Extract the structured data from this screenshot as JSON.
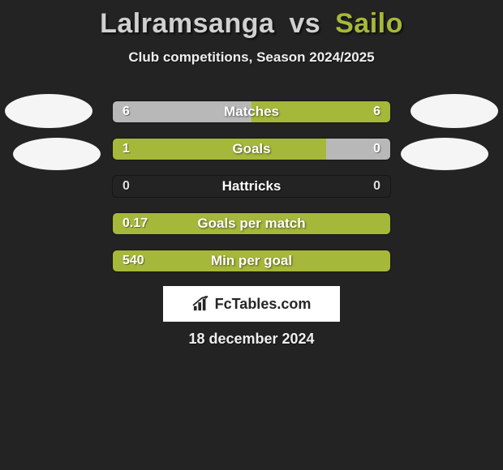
{
  "title": {
    "player1": "Lalramsanga",
    "vs": "vs",
    "player2": "Sailo"
  },
  "subtitle": "Club competitions, Season 2024/2025",
  "colors": {
    "left": "#b8b8b8",
    "right": "#a6b83a",
    "background": "#232323",
    "text": "#ffffff"
  },
  "bars": [
    {
      "label": "Matches",
      "left": "6",
      "right": "6",
      "left_pct": 50,
      "right_pct": 50,
      "left_color": "#b8b8b8",
      "right_color": "#a6b83a"
    },
    {
      "label": "Goals",
      "left": "1",
      "right": "0",
      "left_pct": 77,
      "right_pct": 23,
      "left_color": "#a6b83a",
      "right_color": "#b8b8b8"
    },
    {
      "label": "Hattricks",
      "left": "0",
      "right": "0",
      "left_pct": 0,
      "right_pct": 0,
      "left_color": "#b8b8b8",
      "right_color": "#a6b83a"
    },
    {
      "label": "Goals per match",
      "left": "0.17",
      "right": "",
      "left_pct": 100,
      "right_pct": 0,
      "left_color": "#a6b83a",
      "right_color": "#b8b8b8"
    },
    {
      "label": "Min per goal",
      "left": "540",
      "right": "",
      "left_pct": 100,
      "right_pct": 0,
      "left_color": "#a6b83a",
      "right_color": "#b8b8b8"
    }
  ],
  "logo": "FcTables.com",
  "date": "18 december 2024"
}
